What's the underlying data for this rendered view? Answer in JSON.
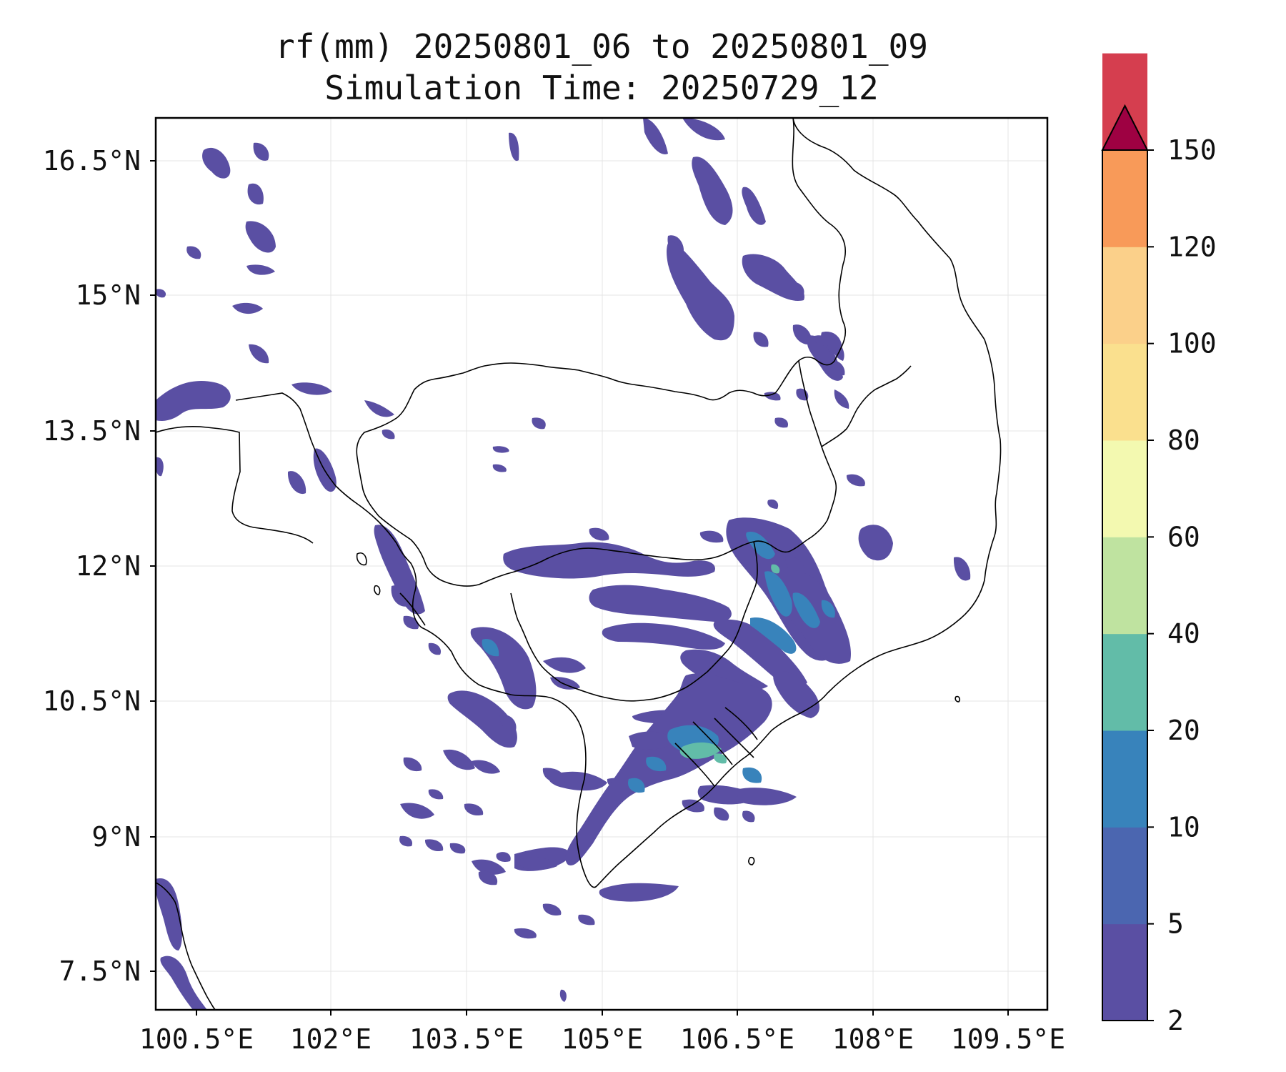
{
  "title_line1": "rf(mm) 20250801_06 to 20250801_09",
  "title_line2": "Simulation Time: 20250729_12",
  "x_ticks": [
    "100.5°E",
    "102°E",
    "103.5°E",
    "105°E",
    "106.5°E",
    "108°E",
    "109.5°E"
  ],
  "y_ticks": [
    "16.5°N",
    "15°N",
    "13.5°N",
    "12°N",
    "10.5°N",
    "9°N",
    "7.5°N"
  ],
  "colorbar": {
    "levels": [
      "2",
      "5",
      "10",
      "20",
      "40",
      "60",
      "80",
      "100",
      "120",
      "150"
    ],
    "colors": [
      "#5a4fa3",
      "#4b66b0",
      "#3883bb",
      "#62bca8",
      "#bfe3a0",
      "#f3f9b0",
      "#fae08e",
      "#fbd08a",
      "#f89a59",
      "#d53e4f"
    ],
    "extend_max_color": "#9e0142"
  }
}
